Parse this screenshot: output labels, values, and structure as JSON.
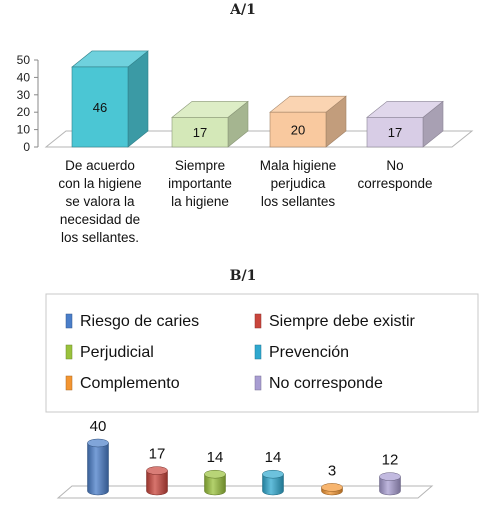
{
  "chart_data": [
    {
      "type": "bar",
      "panel_label": "A/1",
      "categories": [
        [
          "De acuerdo",
          "con la higiene",
          "se valora la",
          "necesidad de",
          "los sellantes."
        ],
        [
          "Siempre",
          "importante",
          "la higiene"
        ],
        [
          "Mala higiene",
          "perjudica",
          "los sellantes"
        ],
        [
          "No",
          "corresponde"
        ]
      ],
      "values": [
        46,
        17,
        20,
        17
      ],
      "colors": [
        "#4bc6d4",
        "#d4e8b8",
        "#f9c99f",
        "#d8cde6"
      ],
      "ylim": [
        0,
        50
      ],
      "yticks": [
        0,
        10,
        20,
        30,
        40,
        50
      ],
      "grid": false,
      "style": "3d"
    },
    {
      "type": "bar",
      "panel_label": "B/1",
      "series": [
        {
          "name": "Riesgo de caries",
          "value": 40,
          "color": "#4a7ec9"
        },
        {
          "name": "Siempre debe existir",
          "value": 17,
          "color": "#c9453c"
        },
        {
          "name": "Perjudicial",
          "value": 14,
          "color": "#9ac23c"
        },
        {
          "name": "Prevención",
          "value": 14,
          "color": "#2fa8cf"
        },
        {
          "name": "Complemento",
          "value": 3,
          "color": "#f39531"
        },
        {
          "name": "No corresponde",
          "value": 12,
          "color": "#a89dd2"
        }
      ],
      "ylim": [
        0,
        40
      ],
      "legend_position": "top",
      "grid": false,
      "style": "3d-cylinder"
    }
  ]
}
